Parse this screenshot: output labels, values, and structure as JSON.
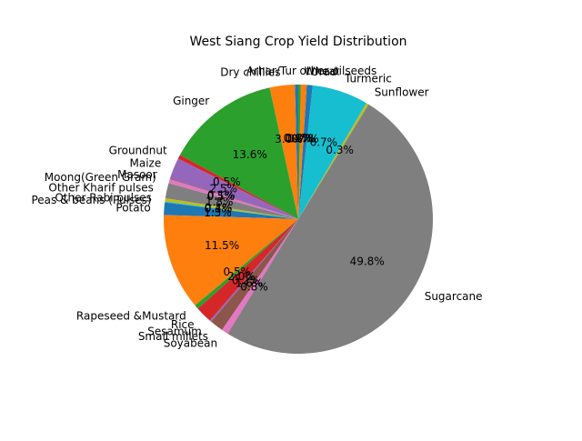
{
  "chart_data": {
    "type": "pie",
    "title": "West Siang Crop Yield Distribution",
    "start_angle_deg": 90,
    "direction": "counterclockwise",
    "slices": [
      {
        "label": "Arhar/Tur",
        "value": 0.4,
        "color": "#1f77b4"
      },
      {
        "label": "Dry chillies",
        "value": 3.0,
        "color": "#ff7f0e"
      },
      {
        "label": "Ginger",
        "value": 13.6,
        "color": "#2ca02c"
      },
      {
        "label": "Groundnut",
        "value": 0.5,
        "color": "#d62728"
      },
      {
        "label": "Maize",
        "value": 2.5,
        "color": "#9467bd"
      },
      {
        "label": "Masoor",
        "value": 0.1,
        "color": "#8c564b"
      },
      {
        "label": "Moong(Green Gram)",
        "value": 0.5,
        "color": "#e377c2"
      },
      {
        "label": "Other Kharif pulses",
        "value": 1.8,
        "color": "#7f7f7f"
      },
      {
        "label": "Other Rabi pulses",
        "value": 0.4,
        "color": "#bcbd22"
      },
      {
        "label": "Peas & beans (Pulses)",
        "value": 0.1,
        "color": "#17becf"
      },
      {
        "label": "Potato",
        "value": 1.5,
        "color": "#1f77b4"
      },
      {
        "label": "",
        "value": 11.5,
        "color": "#ff7f0e"
      },
      {
        "label": "Rapeseed &Mustard",
        "value": 0.5,
        "color": "#2ca02c"
      },
      {
        "label": "Rice",
        "value": 2.0,
        "color": "#d62728"
      },
      {
        "label": "Sesamum",
        "value": 0.2,
        "color": "#9467bd"
      },
      {
        "label": "Small millets",
        "value": 1.6,
        "color": "#8c564b"
      },
      {
        "label": "Soyabean",
        "value": 0.8,
        "color": "#e377c2"
      },
      {
        "label": "Sugarcane",
        "value": 49.8,
        "color": "#7f7f7f"
      },
      {
        "label": "Sunflower",
        "value": 0.3,
        "color": "#bcbd22"
      },
      {
        "label": "Turmeric",
        "value": 6.7,
        "color": "#17becf"
      },
      {
        "label": "Urad",
        "value": 0.7,
        "color": "#1f77b4"
      },
      {
        "label": "Wheat",
        "value": 0.7,
        "color": "#ff7f0e"
      },
      {
        "label": "other oilseeds",
        "value": 0.3,
        "color": "#2ca02c"
      }
    ]
  }
}
